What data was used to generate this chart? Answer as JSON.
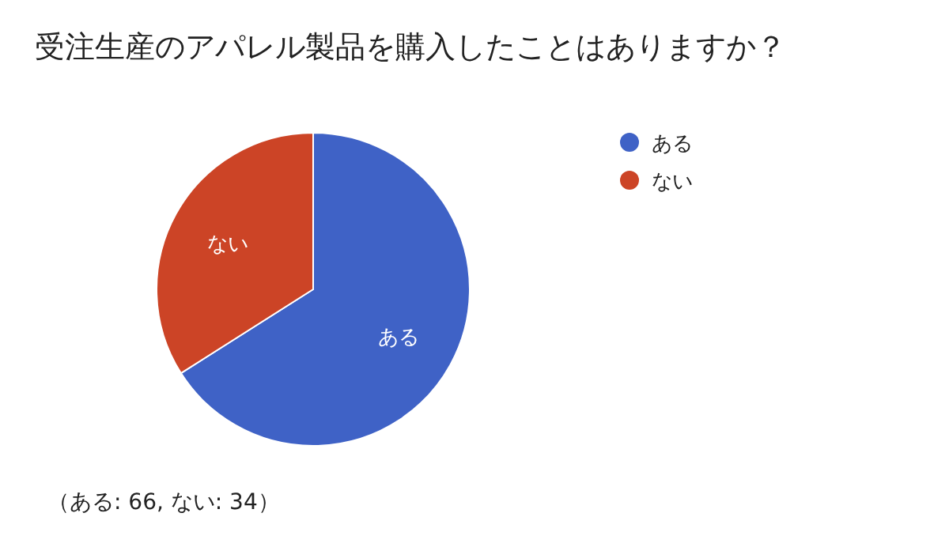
{
  "chart_data": {
    "type": "pie",
    "title": "受注生産のアパレル製品を購入したことはありますか？",
    "categories": [
      "ある",
      "ない"
    ],
    "values": [
      66,
      34
    ],
    "colors": [
      "#3f62c6",
      "#cc4426"
    ],
    "legend": "right",
    "annotations": [
      "（ある: 66, ない: 34）"
    ]
  }
}
